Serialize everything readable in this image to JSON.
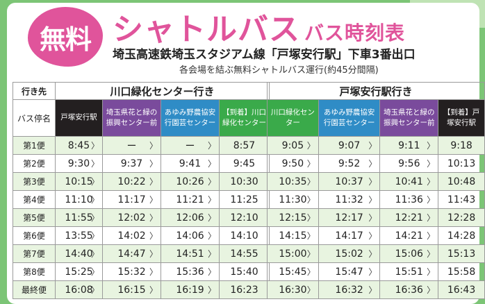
{
  "header": {
    "badge": "無料",
    "title_main": "シャトルバス",
    "title_sub": "バス時刻表",
    "route_line": "埼玉高速鉄埼玉スタジアム線「戸塚安行駅」下車3番出口",
    "description": "各会場を結ぶ無料シャトルバス運行(約45分間隔)"
  },
  "labels": {
    "destination": "行き先",
    "stop": "バス停名"
  },
  "left_table": {
    "destination": "川口緑化センター行き",
    "stops": [
      {
        "name": "戸塚安行駅",
        "color": "#231f20"
      },
      {
        "name": "埼玉県花と緑の振興センター前",
        "color": "#7a4b9c"
      },
      {
        "name": "あゆみ野農協安行園芸センター",
        "color": "#2f8cc6"
      },
      {
        "name": "【到着】川口緑化センター",
        "color": "#3aaa4a"
      }
    ]
  },
  "right_table": {
    "destination": "戸塚安行駅行き",
    "stops": [
      {
        "name": "川口緑化センター",
        "color": "#3aaa4a"
      },
      {
        "name": "あゆみ野農協安行園芸センター",
        "color": "#2f8cc6"
      },
      {
        "name": "埼玉県花と緑の振興センター前",
        "color": "#7a4b9c"
      },
      {
        "name": "【到着】戸塚安行駅",
        "color": "#231f20"
      }
    ]
  },
  "arrow": "〉",
  "trips": [
    {
      "label": "第1便",
      "left": [
        "8:45",
        "ー",
        "ー",
        "8:57"
      ],
      "right": [
        "9:05",
        "9:07",
        "9:11",
        "9:18"
      ]
    },
    {
      "label": "第2便",
      "left": [
        "9:30",
        "9:37",
        "9:41",
        "9:45"
      ],
      "right": [
        "9:50",
        "9:52",
        "9:56",
        "10:13"
      ]
    },
    {
      "label": "第3便",
      "left": [
        "10:15",
        "10:22",
        "10:26",
        "10:30"
      ],
      "right": [
        "10:35",
        "10:37",
        "10:41",
        "10:48"
      ]
    },
    {
      "label": "第4便",
      "left": [
        "11:10",
        "11:17",
        "11:21",
        "11:25"
      ],
      "right": [
        "11:30",
        "11:32",
        "11:36",
        "11:43"
      ]
    },
    {
      "label": "第5便",
      "left": [
        "11:55",
        "12:02",
        "12:06",
        "12:10"
      ],
      "right": [
        "12:15",
        "12:17",
        "12:21",
        "12:28"
      ]
    },
    {
      "label": "第6便",
      "left": [
        "13:55",
        "14:02",
        "14:06",
        "14:10"
      ],
      "right": [
        "14:15",
        "14:17",
        "14:21",
        "14:28"
      ]
    },
    {
      "label": "第7便",
      "left": [
        "14:40",
        "14:47",
        "14:51",
        "14:55"
      ],
      "right": [
        "15:00",
        "15:02",
        "15:06",
        "15:13"
      ]
    },
    {
      "label": "第8便",
      "left": [
        "15:25",
        "15:32",
        "15:36",
        "15:40"
      ],
      "right": [
        "15:45",
        "15:47",
        "15:51",
        "15:58"
      ]
    },
    {
      "label": "最終便",
      "left": [
        "16:08",
        "16:15",
        "16:19",
        "16:23"
      ],
      "right": [
        "16:30",
        "16:32",
        "16:36",
        "16:43"
      ]
    }
  ]
}
